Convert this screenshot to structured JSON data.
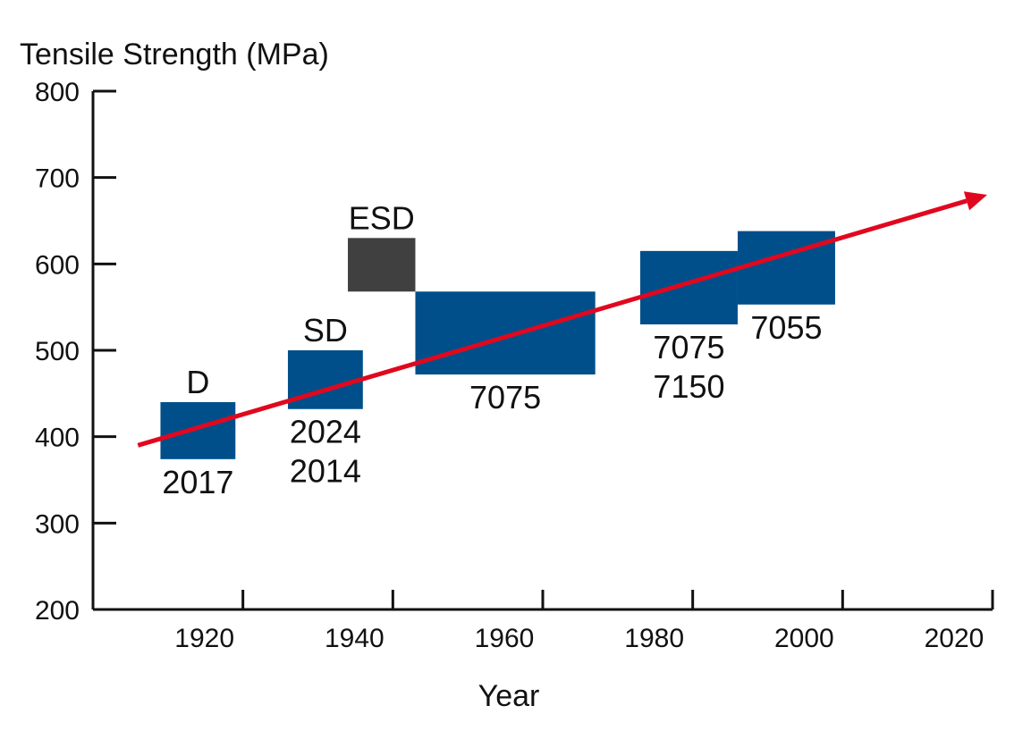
{
  "chart_data": {
    "type": "bar",
    "title": "",
    "xlabel": "Year",
    "ylabel": "Tensile Strength (MPa)",
    "xlim": [
      1900,
      2020
    ],
    "ylim": [
      200,
      800
    ],
    "x_ticks": [
      1920,
      1940,
      1960,
      1980,
      2000,
      2020
    ],
    "y_ticks": [
      200,
      300,
      400,
      500,
      600,
      700,
      800
    ],
    "grid": false,
    "colors": {
      "box": "#004f8a",
      "highlight": "#404040",
      "trend": "#e0081f",
      "axis": "#111111"
    },
    "boxes": [
      {
        "id": "d",
        "x0": 1909,
        "x1": 1919,
        "y0": 374,
        "y1": 440,
        "color": "#004f8a",
        "labels_above": [
          "D"
        ],
        "labels_below": [
          "2017"
        ]
      },
      {
        "id": "sd",
        "x0": 1926,
        "x1": 1936,
        "y0": 432,
        "y1": 500,
        "color": "#004f8a",
        "labels_above": [
          "SD"
        ],
        "labels_below": [
          "2024",
          "2014"
        ]
      },
      {
        "id": "esd",
        "x0": 1934,
        "x1": 1943,
        "y0": 568,
        "y1": 630,
        "color": "#404040",
        "labels_above": [
          "ESD"
        ],
        "labels_below": []
      },
      {
        "id": "7075a",
        "x0": 1943,
        "x1": 1967,
        "y0": 472,
        "y1": 568,
        "color": "#004f8a",
        "labels_above": [],
        "labels_below": [
          "7075"
        ]
      },
      {
        "id": "7075b",
        "x0": 1973,
        "x1": 1986,
        "y0": 530,
        "y1": 615,
        "color": "#004f8a",
        "labels_above": [],
        "labels_below": [
          "7075",
          "7150"
        ]
      },
      {
        "id": "7055",
        "x0": 1986,
        "x1": 1999,
        "y0": 553,
        "y1": 638,
        "color": "#004f8a",
        "labels_above": [],
        "labels_below": [
          "7055"
        ]
      }
    ],
    "trend_arrow": {
      "from": {
        "x": 1906,
        "y": 390
      },
      "to": {
        "x": 2020,
        "y": 680
      },
      "color": "#e0081f"
    }
  }
}
